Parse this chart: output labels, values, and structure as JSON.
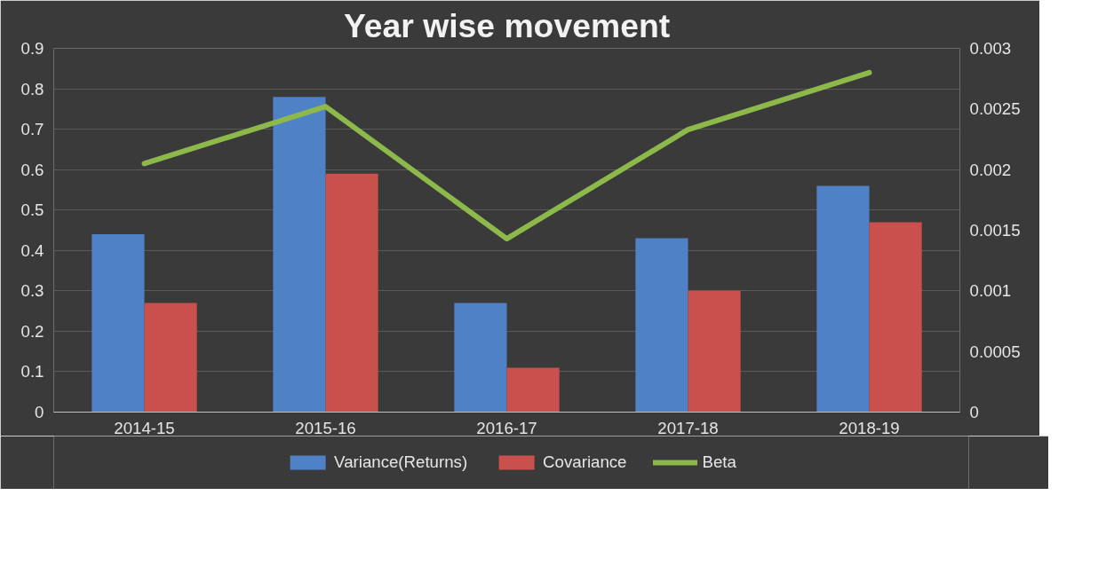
{
  "chart_data": {
    "type": "bar",
    "title": "Year wise movement",
    "categories": [
      "2014-15",
      "2015-16",
      "2016-17",
      "2017-18",
      "2018-19"
    ],
    "series": [
      {
        "name": "Variance(Returns)",
        "color": "#4f81c7",
        "values": [
          0.44,
          0.78,
          0.27,
          0.43,
          0.56
        ]
      },
      {
        "name": "Covariance",
        "color": "#c9504d",
        "values": [
          0.27,
          0.59,
          0.11,
          0.3,
          0.47
        ]
      },
      {
        "name": "Beta",
        "type": "line",
        "axis": "y2",
        "color": "#8db84a",
        "values": [
          0.00205,
          0.00252,
          0.00143,
          0.00233,
          0.0028
        ]
      }
    ],
    "ylim": [
      0,
      0.9
    ],
    "yticks": [
      0,
      0.1,
      0.2,
      0.3,
      0.4,
      0.5,
      0.6,
      0.7,
      0.8,
      0.9
    ],
    "y2lim": [
      0,
      0.003
    ],
    "y2ticks": [
      0,
      0.0005,
      0.001,
      0.0015,
      0.002,
      0.0025,
      0.003
    ],
    "grid": "y",
    "legend": "bottom"
  }
}
